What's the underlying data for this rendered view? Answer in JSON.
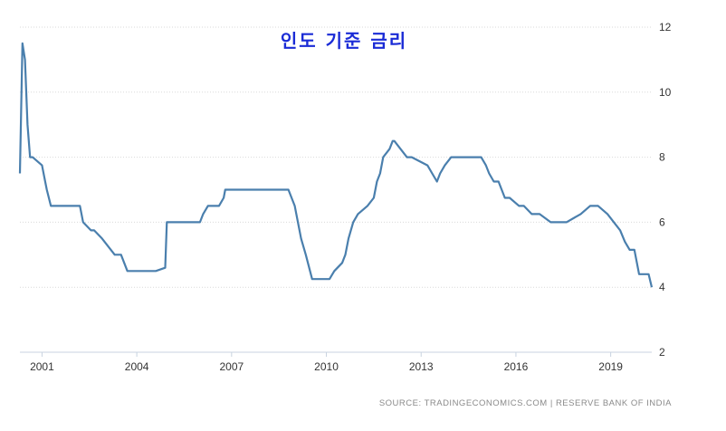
{
  "chart_data": {
    "type": "line",
    "title": "인도 기준 금리",
    "source": "SOURCE: TRADINGECONOMICS.COM | RESERVE BANK OF INDIA",
    "x_ticks": [
      "2001",
      "2004",
      "2007",
      "2010",
      "2013",
      "2016",
      "2019"
    ],
    "y_ticks": [
      "2",
      "4",
      "6",
      "8",
      "10",
      "12"
    ],
    "xlim": [
      2000.3,
      2020.3
    ],
    "ylim": [
      2,
      12
    ],
    "grid": "horizontal",
    "line_color": "#4a7fad",
    "series": [
      {
        "x": [
          2000.3,
          2000.38,
          2000.46,
          2000.54,
          2000.62,
          2000.7,
          2001.0,
          2001.1,
          2001.15,
          2001.28,
          2001.35,
          2001.5,
          2002.2,
          2002.3,
          2002.55,
          2002.65,
          2002.9,
          2003.3,
          2003.5,
          2003.6,
          2003.7,
          2003.85,
          2004.6,
          2004.9,
          2004.95,
          2005.1,
          2006.0,
          2006.1,
          2006.25,
          2006.6,
          2006.75,
          2006.8,
          2008.3,
          2008.4,
          2008.5,
          2008.65,
          2008.75,
          2008.8,
          2009.0,
          2009.2,
          2009.35,
          2009.55,
          2010.0,
          2010.1,
          2010.25,
          2010.5,
          2010.6,
          2010.7,
          2010.85,
          2011.0,
          2011.3,
          2011.5,
          2011.6,
          2011.7,
          2011.8,
          2012.0,
          2012.1,
          2012.15,
          2012.55,
          2012.7,
          2013.2,
          2013.35,
          2013.5,
          2013.6,
          2013.75,
          2013.95,
          2014.15,
          2014.35,
          2014.5,
          2014.75,
          2014.9,
          2015.05,
          2015.15,
          2015.3,
          2015.45,
          2015.65,
          2015.8,
          2016.1,
          2016.25,
          2016.5,
          2016.75,
          2017.1,
          2017.3,
          2017.6,
          2018.05,
          2018.35,
          2018.6,
          2018.9,
          2019.1,
          2019.3,
          2019.45,
          2019.6,
          2019.75,
          2019.9,
          2020.2,
          2020.3
        ],
        "values": [
          7.5,
          11.5,
          11,
          9,
          8,
          8,
          7.75,
          7.25,
          7,
          6.5,
          6.5,
          6.5,
          6.5,
          6,
          5.75,
          5.75,
          5.5,
          5,
          5,
          4.75,
          4.5,
          4.5,
          4.5,
          4.6,
          6,
          6,
          6,
          6.25,
          6.5,
          6.5,
          6.75,
          7,
          7,
          7,
          7,
          7,
          7,
          7,
          6.5,
          5.5,
          5,
          4.25,
          4.25,
          4.25,
          4.5,
          4.75,
          5,
          5.5,
          6,
          6.25,
          6.5,
          6.75,
          7.25,
          7.5,
          8,
          8.25,
          8.5,
          8.5,
          8,
          8,
          7.75,
          7.5,
          7.25,
          7.5,
          7.75,
          8,
          8,
          8,
          8,
          8,
          8,
          7.75,
          7.5,
          7.25,
          7.25,
          6.75,
          6.75,
          6.5,
          6.5,
          6.25,
          6.25,
          6,
          6,
          6,
          6.25,
          6.5,
          6.5,
          6.25,
          6,
          5.75,
          5.4,
          5.15,
          5.15,
          4.4,
          4.4,
          4
        ]
      }
    ]
  }
}
